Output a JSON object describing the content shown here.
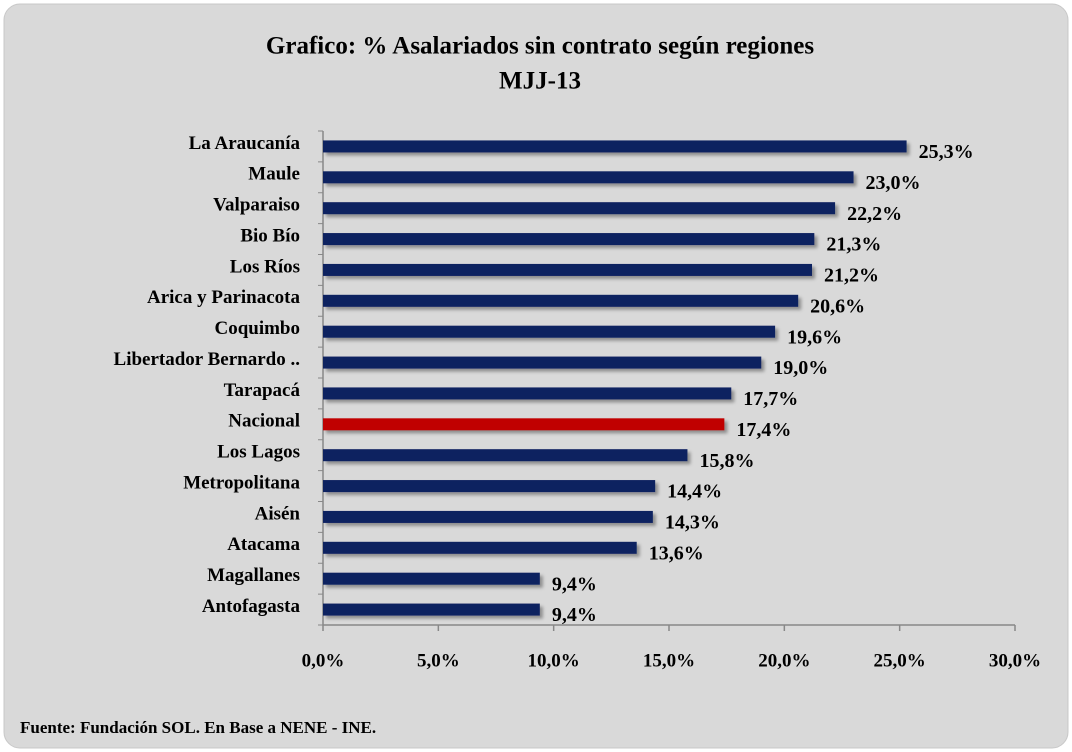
{
  "chart_data": {
    "type": "hbar",
    "title": "Grafico: % Asalariados sin contrato  según regiones",
    "subtitle": "MJJ-13",
    "categories": [
      "La Araucanía",
      "Maule",
      "Valparaiso",
      "Bio Bío",
      "Los Ríos",
      "Arica y Parinacota",
      "Coquimbo",
      "Libertador Bernardo ..",
      "Tarapacá",
      "Nacional",
      "Los Lagos",
      "Metropolitana",
      "Aisén",
      "Atacama",
      "Magallanes",
      "Antofagasta"
    ],
    "values": [
      25.3,
      23.0,
      22.2,
      21.3,
      21.2,
      20.6,
      19.6,
      19.0,
      17.7,
      17.4,
      15.8,
      14.4,
      14.3,
      13.6,
      9.4,
      9.4
    ],
    "value_labels": [
      "25,3%",
      "23,0%",
      "22,2%",
      "21,3%",
      "21,2%",
      "20,6%",
      "19,6%",
      "19,0%",
      "17,7%",
      "17,4%",
      "15,8%",
      "14,4%",
      "14,3%",
      "13,6%",
      "9,4%",
      "9,4%"
    ],
    "colors": [
      "#0d2260",
      "#0d2260",
      "#0d2260",
      "#0d2260",
      "#0d2260",
      "#0d2260",
      "#0d2260",
      "#0d2260",
      "#0d2260",
      "#c00000",
      "#0d2260",
      "#0d2260",
      "#0d2260",
      "#0d2260",
      "#0d2260",
      "#0d2260"
    ],
    "xlim": [
      0,
      30
    ],
    "xticks": [
      {
        "value": 0,
        "label": "0,0%"
      },
      {
        "value": 5,
        "label": "5,0%"
      },
      {
        "value": 10,
        "label": "10,0%"
      },
      {
        "value": 15,
        "label": "15,0%"
      },
      {
        "value": 20,
        "label": "20,0%"
      },
      {
        "value": 25,
        "label": "25,0%"
      },
      {
        "value": 30,
        "label": "30,0%"
      }
    ],
    "source": "Fuente: Fundación SOL. En Base a NENE - INE."
  }
}
